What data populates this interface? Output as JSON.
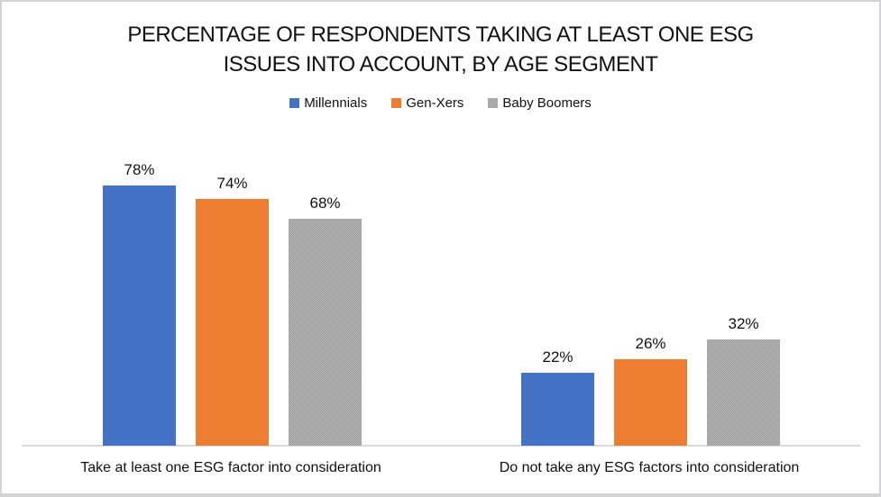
{
  "chart_data": {
    "type": "bar",
    "title": "PERCENTAGE OF RESPONDENTS TAKING AT LEAST ONE ESG ISSUES INTO ACCOUNT, BY AGE SEGMENT",
    "title_lines": [
      "PERCENTAGE OF RESPONDENTS TAKING AT LEAST ONE ESG",
      "ISSUES INTO ACCOUNT, BY AGE SEGMENT"
    ],
    "categories": [
      "Take at least one ESG factor into consideration",
      "Do not take any ESG factors into consideration"
    ],
    "series": [
      {
        "name": "Millennials",
        "color": "#4472C4",
        "values": [
          78,
          22
        ]
      },
      {
        "name": "Gen-Xers",
        "color": "#ED7D31",
        "values": [
          74,
          26
        ]
      },
      {
        "name": "Baby Boomers",
        "color": "#A5A5A5",
        "texture": "dithered",
        "values": [
          68,
          32
        ]
      }
    ],
    "value_suffix": "%",
    "data_labels": true,
    "legend_position": "top",
    "gridlines": false,
    "y_axis_visible": false,
    "ylim": [
      0,
      90
    ],
    "axis_line_color": "#D9D9D9"
  },
  "colors": {
    "background": "#FFFFFF",
    "frame_border": "#D3D3D6",
    "text": "#111111"
  }
}
